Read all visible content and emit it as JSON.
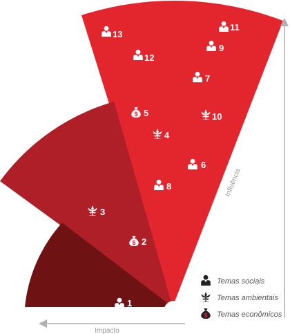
{
  "axes": {
    "x_label": "Impacto",
    "y_label": "Influência"
  },
  "colors": {
    "outer_sector": "#e3252e",
    "middle_sector": "#ae1f27",
    "inner_sector": "#6e1214",
    "axis": "#b0b0b0",
    "icon_on_sector": "#ffffff",
    "icon_legend": "#222222"
  },
  "items": [
    {
      "label": "1",
      "theme": "social-icon"
    },
    {
      "label": "2",
      "theme": "economic-icon"
    },
    {
      "label": "3",
      "theme": "environmental-icon"
    },
    {
      "label": "4",
      "theme": "environmental-icon"
    },
    {
      "label": "5",
      "theme": "economic-icon"
    },
    {
      "label": "6",
      "theme": "social-icon"
    },
    {
      "label": "7",
      "theme": "social-icon"
    },
    {
      "label": "8",
      "theme": "social-icon"
    },
    {
      "label": "9",
      "theme": "social-icon"
    },
    {
      "label": "10",
      "theme": "environmental-icon"
    },
    {
      "label": "11",
      "theme": "social-icon"
    },
    {
      "label": "12",
      "theme": "social-icon"
    },
    {
      "label": "13",
      "theme": "social-icon"
    }
  ],
  "legend": [
    {
      "label": "Temas sociais",
      "icon": "social-icon"
    },
    {
      "label": "Temas ambientais",
      "icon": "environmental-icon"
    },
    {
      "label": "Temas econômicos",
      "icon": "economic-icon"
    }
  ]
}
